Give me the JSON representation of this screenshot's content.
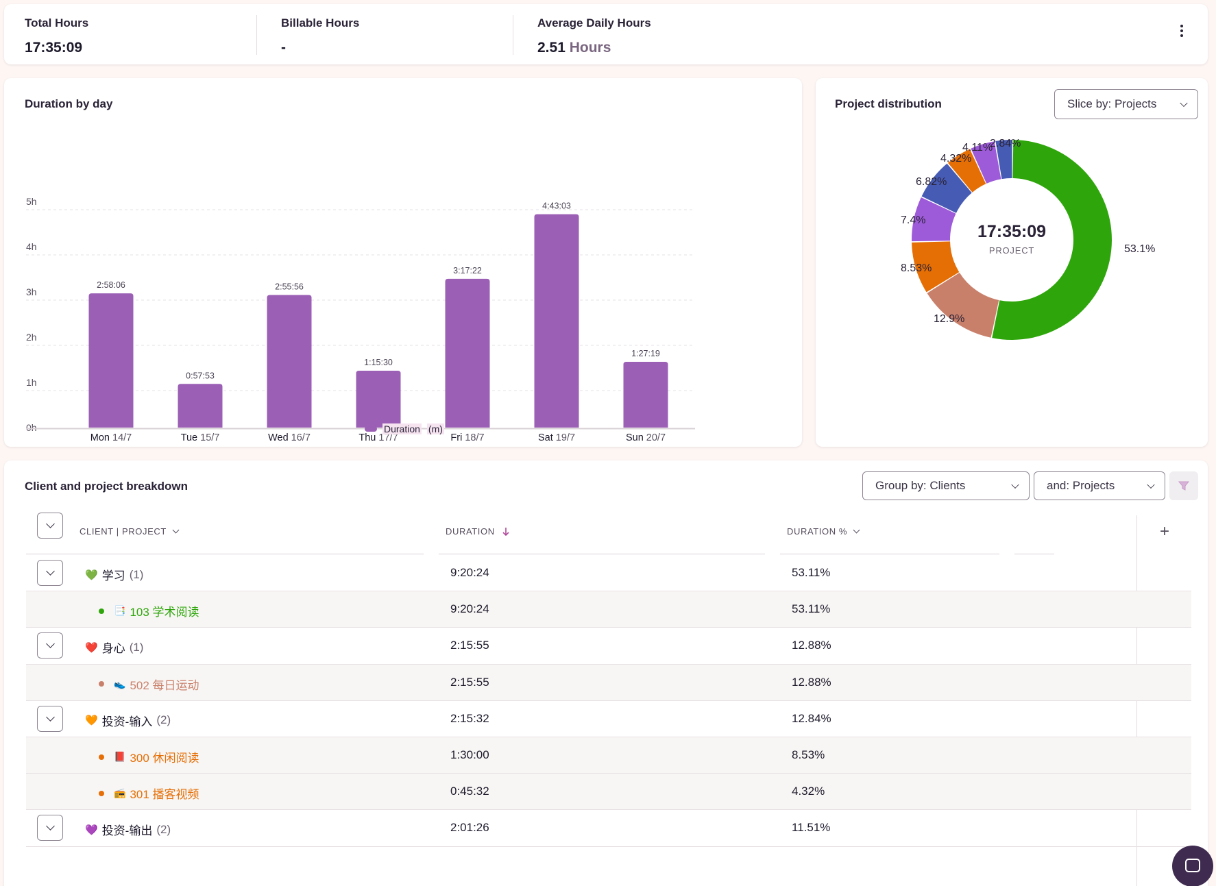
{
  "summary": {
    "total_hours": {
      "label": "Total Hours",
      "value": "17:35:09"
    },
    "billable_hours": {
      "label": "Billable Hours",
      "value": "-"
    },
    "average_daily": {
      "label": "Average Daily Hours",
      "value": "2.51",
      "unit": "Hours"
    }
  },
  "bar_chart": {
    "title": "Duration by day",
    "legend_label": "Duration",
    "legend_unit": "(m)"
  },
  "chart_data": [
    {
      "type": "bar",
      "title": "Duration by day",
      "categories": [
        "Mon 14/7",
        "Tue 15/7",
        "Wed 16/7",
        "Thu 17/7",
        "Fri 18/7",
        "Sat 19/7",
        "Sun 20/7"
      ],
      "category_parts": [
        [
          "Mon",
          "14/7"
        ],
        [
          "Tue",
          "15/7"
        ],
        [
          "Wed",
          "16/7"
        ],
        [
          "Thu",
          "17/7"
        ],
        [
          "Fri",
          "18/7"
        ],
        [
          "Sat",
          "19/7"
        ],
        [
          "Sun",
          "20/7"
        ]
      ],
      "series": [
        {
          "name": "Duration",
          "values": [
            178.1,
            57.9,
            175.9,
            75.5,
            197.4,
            283.1,
            87.3
          ]
        }
      ],
      "data_labels": [
        "2:58:06",
        "0:57:53",
        "2:55:56",
        "1:15:30",
        "3:17:22",
        "4:43:03",
        "1:27:19"
      ],
      "y_ticks": [
        "0h",
        "1h",
        "2h",
        "3h",
        "4h",
        "5h"
      ],
      "ylim": [
        0,
        300
      ],
      "grid": true,
      "bar_color": "#9b5fb5",
      "legend": "bottom-center"
    },
    {
      "type": "pie",
      "title": "Project distribution",
      "center_value": "17:35:09",
      "center_label": "PROJECT",
      "slices": [
        {
          "value": 53.1,
          "label": "53.1%",
          "color": "#2ea60b"
        },
        {
          "value": 12.9,
          "label": "12.9%",
          "color": "#c9806b"
        },
        {
          "value": 8.53,
          "label": "8.53%",
          "color": "#e56e05"
        },
        {
          "value": 7.4,
          "label": "7.4%",
          "color": "#9e5bd9"
        },
        {
          "value": 6.82,
          "label": "6.82%",
          "color": "#465bb3"
        },
        {
          "value": 4.32,
          "label": "4.32%",
          "color": "#e56e05"
        },
        {
          "value": 4.11,
          "label": "4.11%",
          "color": "#9e5bd9"
        },
        {
          "value": 2.84,
          "label": "2.84%",
          "color": "#465bb3"
        }
      ]
    }
  ],
  "donut": {
    "title": "Project distribution",
    "slice_select": "Slice by: Projects"
  },
  "breakdown": {
    "title": "Client and project breakdown",
    "group_select": "Group by: Clients",
    "and_select": "and: Projects",
    "columns": {
      "client": "CLIENT | PROJECT",
      "duration": "DURATION",
      "duration_pct": "DURATION %"
    },
    "rows": [
      {
        "kind": "client",
        "heart": "💚",
        "heart_color": "#2ea60b",
        "name": "学习",
        "count": "(1)",
        "duration": "9:20:24",
        "pct": "53.11%"
      },
      {
        "kind": "project",
        "color": "#2ea60b",
        "emoji": "📑",
        "name": "103 学术阅读",
        "duration": "9:20:24",
        "pct": "53.11%"
      },
      {
        "kind": "client",
        "heart": "❤️",
        "heart_color": "#e0314f",
        "name": "身心",
        "count": "(1)",
        "duration": "2:15:55",
        "pct": "12.88%"
      },
      {
        "kind": "project",
        "color": "#c9806b",
        "emoji": "👟",
        "name": "502 每日运动",
        "duration": "2:15:55",
        "pct": "12.88%"
      },
      {
        "kind": "client",
        "heart": "🧡",
        "heart_color": "#e56e05",
        "name": "投资-输入",
        "count": "(2)",
        "duration": "2:15:32",
        "pct": "12.84%"
      },
      {
        "kind": "project",
        "color": "#e56e05",
        "emoji": "📕",
        "name": "300 休闲阅读",
        "duration": "1:30:00",
        "pct": "8.53%"
      },
      {
        "kind": "project",
        "color": "#e56e05",
        "emoji": "📻",
        "name": "301 播客视频",
        "duration": "0:45:32",
        "pct": "4.32%"
      },
      {
        "kind": "client",
        "heart": "💜",
        "heart_color": "#8a3fd1",
        "name": "投资-输出",
        "count": "(2)",
        "duration": "2:01:26",
        "pct": "11.51%"
      }
    ]
  },
  "colors": {
    "accent": "#9b5fb5",
    "sort_arrow": "#b0489a"
  }
}
